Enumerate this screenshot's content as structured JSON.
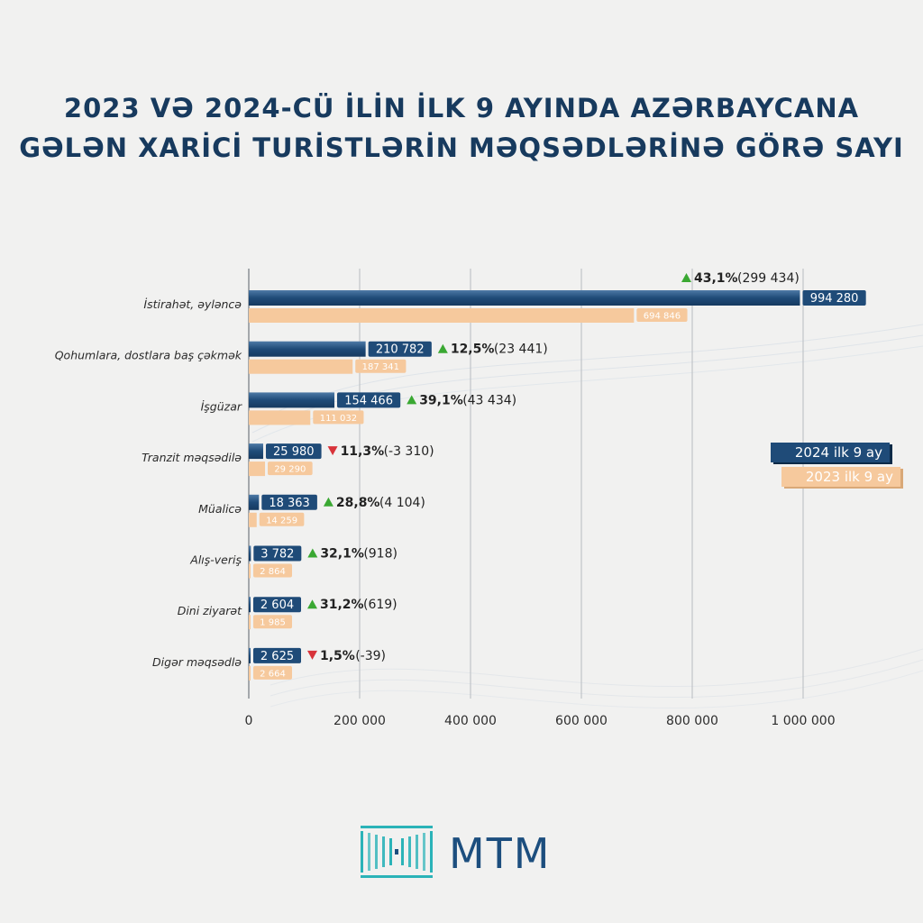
{
  "title_line1": "2023 VƏ 2024-CÜ İLİN İLK 9 AYINDA AZƏRBAYCANA",
  "title_line2": "GƏLƏN XARİCİ TURİSTLƏRİN MƏQSƏDLƏRİNƏ GÖRƏ SAYI",
  "brand": "MTM",
  "colors": {
    "y2024": "#1f4b78",
    "y2023": "#f6c99d",
    "up": "#3aa832",
    "down": "#d8333a",
    "title": "#173a5e"
  },
  "chart_data": {
    "type": "bar",
    "orientation": "horizontal",
    "categories": [
      "İstirahət, əyləncə",
      "Qohumlara, dostlara baş çəkmək",
      "İşgüzar",
      "Tranzit məqsədilə",
      "Müalicə",
      "Alış-veriş",
      "Dini ziyarət",
      "Digər məqsədlə"
    ],
    "series": [
      {
        "name": "2024 ilk 9 ay",
        "values": [
          994280,
          210782,
          154466,
          25980,
          18363,
          3782,
          2604,
          2625
        ],
        "labels": [
          "994 280",
          "210 782",
          "154 466",
          "25 980",
          "18 363",
          "3 782",
          "2 604",
          "2 625"
        ]
      },
      {
        "name": "2023 ilk 9 ay",
        "values": [
          694846,
          187341,
          111032,
          29290,
          14259,
          2864,
          1985,
          2664
        ],
        "labels": [
          "694 846",
          "187 341",
          "111 032",
          "29 290",
          "14 259",
          "2 864",
          "1 985",
          "2 664"
        ]
      }
    ],
    "changes": [
      {
        "direction": "up",
        "percent": "43,1%",
        "absolute": "(299 434)"
      },
      {
        "direction": "up",
        "percent": "12,5%",
        "absolute": "(23 441)"
      },
      {
        "direction": "up",
        "percent": "39,1%",
        "absolute": "(43 434)"
      },
      {
        "direction": "down",
        "percent": "11,3%",
        "absolute": "(-3 310)"
      },
      {
        "direction": "up",
        "percent": "28,8%",
        "absolute": "(4 104)"
      },
      {
        "direction": "up",
        "percent": "32,1%",
        "absolute": "(918)"
      },
      {
        "direction": "up",
        "percent": "31,2%",
        "absolute": "(619)"
      },
      {
        "direction": "down",
        "percent": "1,5%",
        "absolute": "(-39)"
      }
    ],
    "xlim": [
      0,
      1000000
    ],
    "xticks": [
      0,
      200000,
      400000,
      600000,
      800000,
      1000000
    ],
    "xtick_labels": [
      "0",
      "200 000",
      "400 000",
      "600 000",
      "800 000",
      "1 000 000"
    ],
    "grid": true,
    "legend_position": "right"
  }
}
